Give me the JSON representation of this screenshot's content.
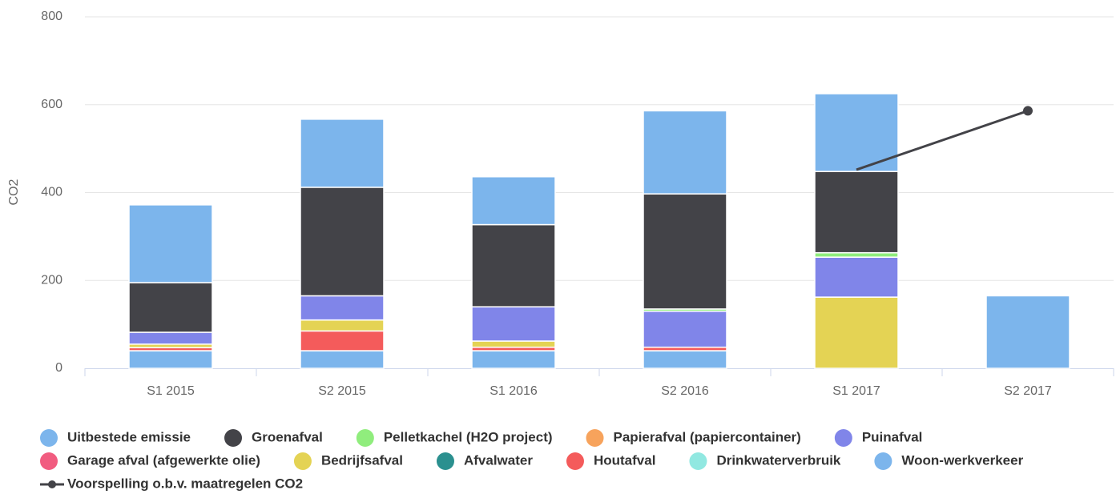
{
  "chart_data": {
    "type": "bar",
    "stacked": true,
    "y_label": "CO2",
    "categories": [
      "S1 2015",
      "S2 2015",
      "S1 2016",
      "S2 2016",
      "S1 2017",
      "S2 2017"
    ],
    "ylim": [
      0,
      800
    ],
    "yticks": [
      0,
      200,
      400,
      600,
      800
    ],
    "grid": true,
    "series": [
      {
        "name": "Uitbestede emissie",
        "color": "#7cb5ec",
        "values": [
          177,
          155,
          109,
          189,
          177,
          0
        ]
      },
      {
        "name": "Groenafval",
        "color": "#434348",
        "values": [
          113,
          247,
          187,
          262,
          185,
          0
        ]
      },
      {
        "name": "Pelletkachel (H2O project)",
        "color": "#90ed7d",
        "values": [
          0,
          0,
          0,
          5,
          10,
          0
        ]
      },
      {
        "name": "Papierafval (papiercontainer)",
        "color": "#f7a35c",
        "values": [
          0,
          0,
          0,
          0,
          0,
          0
        ]
      },
      {
        "name": "Puinafval",
        "color": "#8085e9",
        "values": [
          27,
          55,
          78,
          82,
          91,
          0
        ]
      },
      {
        "name": "Garage afval (afgewerkte olie)",
        "color": "#f15c80",
        "values": [
          0,
          0,
          0,
          0,
          0,
          0
        ]
      },
      {
        "name": "Bedrijfsafval",
        "color": "#e4d354",
        "values": [
          8,
          25,
          14,
          0,
          162,
          0
        ]
      },
      {
        "name": "Afvalwater",
        "color": "#2b908f",
        "values": [
          0,
          0,
          0,
          0,
          0,
          0
        ]
      },
      {
        "name": "Houtafval",
        "color": "#f45b5b",
        "values": [
          7,
          45,
          8,
          8,
          0,
          0
        ]
      },
      {
        "name": "Drinkwaterverbruik",
        "color": "#91e8e1",
        "values": [
          0,
          0,
          0,
          0,
          0,
          0
        ]
      },
      {
        "name": "Woon-werkverkeer",
        "color": "#7cb5ec",
        "values": [
          40,
          40,
          40,
          40,
          0,
          165
        ]
      },
      {
        "name": "Voorspelling o.b.v. maatregelen CO2",
        "type": "line",
        "color": "#434348",
        "values": [
          null,
          null,
          null,
          null,
          452,
          586
        ]
      }
    ]
  }
}
